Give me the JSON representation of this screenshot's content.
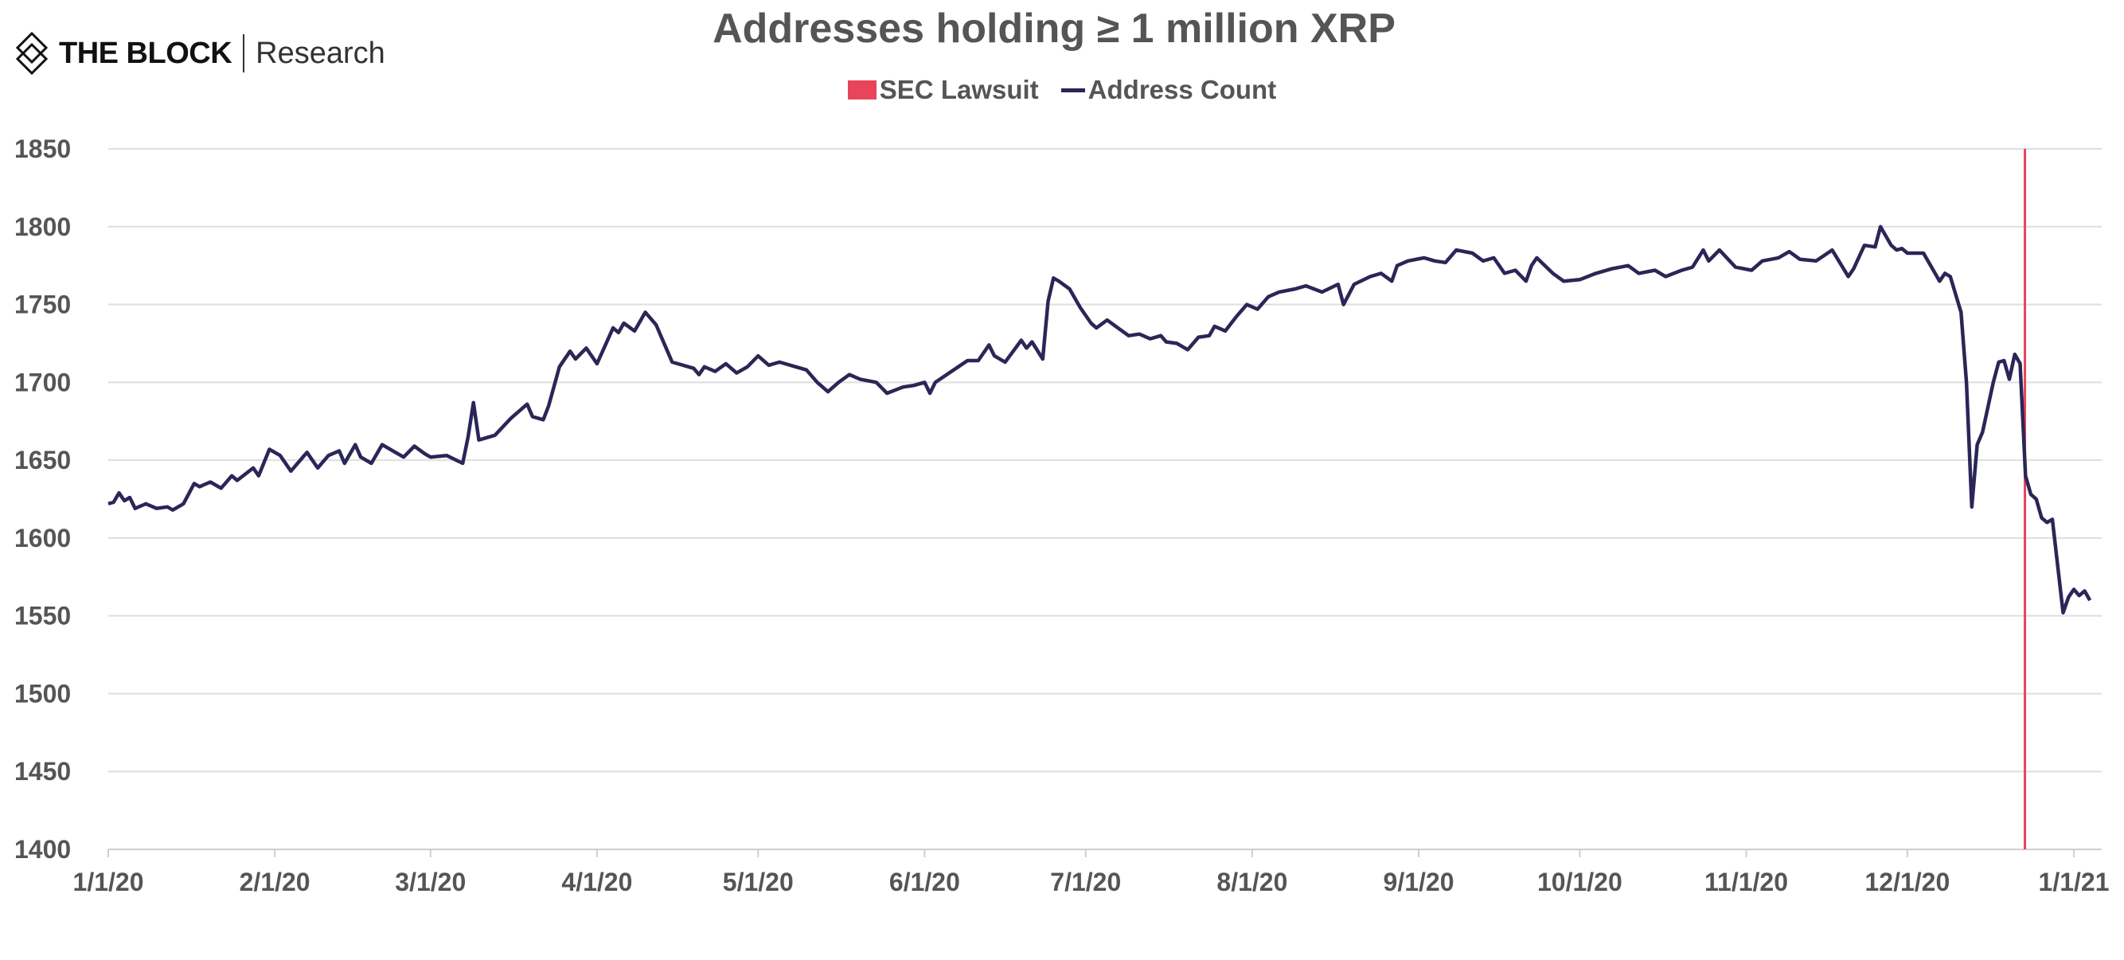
{
  "brand": {
    "name": "THE BLOCK",
    "sub": "Research"
  },
  "chart_data": {
    "type": "line",
    "title": "Addresses holding ≥ 1 million XRP",
    "legend": [
      {
        "name": "SEC Lawsuit",
        "color": "#e8445a"
      },
      {
        "name": "Address Count",
        "color": "#2a2657"
      }
    ],
    "legend_placement": "top",
    "ylim": [
      1400,
      1850
    ],
    "yticks": [
      1400,
      1450,
      1500,
      1550,
      1600,
      1650,
      1700,
      1750,
      1800,
      1850
    ],
    "xlim": [
      "2020-01-01",
      "2021-01-06"
    ],
    "xticks": [
      {
        "date": "2020-01-01",
        "label": "1/1/20"
      },
      {
        "date": "2020-02-01",
        "label": "2/1/20"
      },
      {
        "date": "2020-03-01",
        "label": "3/1/20"
      },
      {
        "date": "2020-04-01",
        "label": "4/1/20"
      },
      {
        "date": "2020-05-01",
        "label": "5/1/20"
      },
      {
        "date": "2020-06-01",
        "label": "6/1/20"
      },
      {
        "date": "2020-07-01",
        "label": "7/1/20"
      },
      {
        "date": "2020-08-01",
        "label": "8/1/20"
      },
      {
        "date": "2020-09-01",
        "label": "9/1/20"
      },
      {
        "date": "2020-10-01",
        "label": "10/1/20"
      },
      {
        "date": "2020-11-01",
        "label": "11/1/20"
      },
      {
        "date": "2020-12-01",
        "label": "12/1/20"
      },
      {
        "date": "2021-01-01",
        "label": "1/1/21"
      }
    ],
    "grid": "horizontal",
    "sec_lawsuit_date": "2020-12-22",
    "series": [
      {
        "name": "Address Count",
        "points": [
          [
            "2020-01-01",
            1622
          ],
          [
            "2020-01-02",
            1623
          ],
          [
            "2020-01-03",
            1629
          ],
          [
            "2020-01-04",
            1624
          ],
          [
            "2020-01-05",
            1626
          ],
          [
            "2020-01-06",
            1619
          ],
          [
            "2020-01-08",
            1622
          ],
          [
            "2020-01-10",
            1619
          ],
          [
            "2020-01-12",
            1620
          ],
          [
            "2020-01-13",
            1618
          ],
          [
            "2020-01-15",
            1622
          ],
          [
            "2020-01-17",
            1635
          ],
          [
            "2020-01-18",
            1633
          ],
          [
            "2020-01-20",
            1636
          ],
          [
            "2020-01-22",
            1632
          ],
          [
            "2020-01-24",
            1640
          ],
          [
            "2020-01-25",
            1637
          ],
          [
            "2020-01-28",
            1645
          ],
          [
            "2020-01-29",
            1640
          ],
          [
            "2020-01-31",
            1657
          ],
          [
            "2020-02-02",
            1653
          ],
          [
            "2020-02-04",
            1643
          ],
          [
            "2020-02-07",
            1655
          ],
          [
            "2020-02-09",
            1645
          ],
          [
            "2020-02-11",
            1653
          ],
          [
            "2020-02-13",
            1656
          ],
          [
            "2020-02-14",
            1648
          ],
          [
            "2020-02-16",
            1660
          ],
          [
            "2020-02-17",
            1652
          ],
          [
            "2020-02-19",
            1648
          ],
          [
            "2020-02-21",
            1660
          ],
          [
            "2020-02-23",
            1656
          ],
          [
            "2020-02-25",
            1652
          ],
          [
            "2020-02-27",
            1659
          ],
          [
            "2020-02-29",
            1654
          ],
          [
            "2020-03-01",
            1652
          ],
          [
            "2020-03-04",
            1653
          ],
          [
            "2020-03-07",
            1648
          ],
          [
            "2020-03-08",
            1665
          ],
          [
            "2020-03-09",
            1687
          ],
          [
            "2020-03-10",
            1663
          ],
          [
            "2020-03-13",
            1666
          ],
          [
            "2020-03-16",
            1677
          ],
          [
            "2020-03-19",
            1686
          ],
          [
            "2020-03-20",
            1678
          ],
          [
            "2020-03-22",
            1676
          ],
          [
            "2020-03-23",
            1685
          ],
          [
            "2020-03-25",
            1710
          ],
          [
            "2020-03-27",
            1720
          ],
          [
            "2020-03-28",
            1715
          ],
          [
            "2020-03-30",
            1722
          ],
          [
            "2020-04-01",
            1712
          ],
          [
            "2020-04-04",
            1735
          ],
          [
            "2020-04-05",
            1732
          ],
          [
            "2020-04-06",
            1738
          ],
          [
            "2020-04-08",
            1733
          ],
          [
            "2020-04-10",
            1745
          ],
          [
            "2020-04-12",
            1737
          ],
          [
            "2020-04-15",
            1713
          ],
          [
            "2020-04-19",
            1709
          ],
          [
            "2020-04-20",
            1705
          ],
          [
            "2020-04-21",
            1710
          ],
          [
            "2020-04-23",
            1707
          ],
          [
            "2020-04-25",
            1712
          ],
          [
            "2020-04-27",
            1706
          ],
          [
            "2020-04-29",
            1710
          ],
          [
            "2020-05-01",
            1717
          ],
          [
            "2020-05-03",
            1711
          ],
          [
            "2020-05-05",
            1713
          ],
          [
            "2020-05-08",
            1710
          ],
          [
            "2020-05-10",
            1708
          ],
          [
            "2020-05-12",
            1700
          ],
          [
            "2020-05-14",
            1694
          ],
          [
            "2020-05-16",
            1700
          ],
          [
            "2020-05-18",
            1705
          ],
          [
            "2020-05-20",
            1702
          ],
          [
            "2020-05-23",
            1700
          ],
          [
            "2020-05-25",
            1693
          ],
          [
            "2020-05-28",
            1697
          ],
          [
            "2020-05-30",
            1698
          ],
          [
            "2020-06-01",
            1700
          ],
          [
            "2020-06-02",
            1693
          ],
          [
            "2020-06-03",
            1700
          ],
          [
            "2020-06-06",
            1707
          ],
          [
            "2020-06-09",
            1714
          ],
          [
            "2020-06-11",
            1714
          ],
          [
            "2020-06-13",
            1724
          ],
          [
            "2020-06-14",
            1717
          ],
          [
            "2020-06-16",
            1713
          ],
          [
            "2020-06-19",
            1727
          ],
          [
            "2020-06-20",
            1722
          ],
          [
            "2020-06-21",
            1726
          ],
          [
            "2020-06-23",
            1715
          ],
          [
            "2020-06-24",
            1752
          ],
          [
            "2020-06-25",
            1767
          ],
          [
            "2020-06-26",
            1765
          ],
          [
            "2020-06-28",
            1760
          ],
          [
            "2020-06-30",
            1748
          ],
          [
            "2020-07-02",
            1738
          ],
          [
            "2020-07-03",
            1735
          ],
          [
            "2020-07-05",
            1740
          ],
          [
            "2020-07-07",
            1735
          ],
          [
            "2020-07-09",
            1730
          ],
          [
            "2020-07-11",
            1731
          ],
          [
            "2020-07-13",
            1728
          ],
          [
            "2020-07-15",
            1730
          ],
          [
            "2020-07-16",
            1726
          ],
          [
            "2020-07-18",
            1725
          ],
          [
            "2020-07-20",
            1721
          ],
          [
            "2020-07-22",
            1729
          ],
          [
            "2020-07-24",
            1730
          ],
          [
            "2020-07-25",
            1736
          ],
          [
            "2020-07-27",
            1733
          ],
          [
            "2020-07-29",
            1742
          ],
          [
            "2020-07-31",
            1750
          ],
          [
            "2020-08-02",
            1747
          ],
          [
            "2020-08-04",
            1755
          ],
          [
            "2020-08-06",
            1758
          ],
          [
            "2020-08-09",
            1760
          ],
          [
            "2020-08-11",
            1762
          ],
          [
            "2020-08-14",
            1758
          ],
          [
            "2020-08-17",
            1763
          ],
          [
            "2020-08-18",
            1750
          ],
          [
            "2020-08-20",
            1763
          ],
          [
            "2020-08-23",
            1768
          ],
          [
            "2020-08-25",
            1770
          ],
          [
            "2020-08-27",
            1765
          ],
          [
            "2020-08-28",
            1775
          ],
          [
            "2020-08-30",
            1778
          ],
          [
            "2020-09-02",
            1780
          ],
          [
            "2020-09-04",
            1778
          ],
          [
            "2020-09-06",
            1777
          ],
          [
            "2020-09-08",
            1785
          ],
          [
            "2020-09-11",
            1783
          ],
          [
            "2020-09-13",
            1778
          ],
          [
            "2020-09-15",
            1780
          ],
          [
            "2020-09-17",
            1770
          ],
          [
            "2020-09-19",
            1772
          ],
          [
            "2020-09-21",
            1765
          ],
          [
            "2020-09-22",
            1775
          ],
          [
            "2020-09-23",
            1780
          ],
          [
            "2020-09-26",
            1770
          ],
          [
            "2020-09-28",
            1765
          ],
          [
            "2020-10-01",
            1766
          ],
          [
            "2020-10-04",
            1770
          ],
          [
            "2020-10-07",
            1773
          ],
          [
            "2020-10-10",
            1775
          ],
          [
            "2020-10-12",
            1770
          ],
          [
            "2020-10-15",
            1772
          ],
          [
            "2020-10-17",
            1768
          ],
          [
            "2020-10-20",
            1772
          ],
          [
            "2020-10-22",
            1774
          ],
          [
            "2020-10-24",
            1785
          ],
          [
            "2020-10-25",
            1778
          ],
          [
            "2020-10-27",
            1785
          ],
          [
            "2020-10-30",
            1774
          ],
          [
            "2020-11-02",
            1772
          ],
          [
            "2020-11-04",
            1778
          ],
          [
            "2020-11-07",
            1780
          ],
          [
            "2020-11-09",
            1784
          ],
          [
            "2020-11-11",
            1779
          ],
          [
            "2020-11-14",
            1778
          ],
          [
            "2020-11-17",
            1785
          ],
          [
            "2020-11-20",
            1768
          ],
          [
            "2020-11-21",
            1773
          ],
          [
            "2020-11-23",
            1788
          ],
          [
            "2020-11-25",
            1787
          ],
          [
            "2020-11-26",
            1800
          ],
          [
            "2020-11-28",
            1788
          ],
          [
            "2020-11-29",
            1785
          ],
          [
            "2020-11-30",
            1786
          ],
          [
            "2020-12-01",
            1783
          ],
          [
            "2020-12-04",
            1783
          ],
          [
            "2020-12-07",
            1765
          ],
          [
            "2020-12-08",
            1770
          ],
          [
            "2020-12-09",
            1768
          ],
          [
            "2020-12-11",
            1745
          ],
          [
            "2020-12-12",
            1700
          ],
          [
            "2020-12-13",
            1620
          ],
          [
            "2020-12-14",
            1660
          ],
          [
            "2020-12-15",
            1668
          ],
          [
            "2020-12-17",
            1700
          ],
          [
            "2020-12-18",
            1713
          ],
          [
            "2020-12-19",
            1714
          ],
          [
            "2020-12-20",
            1702
          ],
          [
            "2020-12-21",
            1718
          ],
          [
            "2020-12-22",
            1712
          ],
          [
            "2020-12-23",
            1640
          ],
          [
            "2020-12-24",
            1628
          ],
          [
            "2020-12-25",
            1625
          ],
          [
            "2020-12-26",
            1613
          ],
          [
            "2020-12-27",
            1610
          ],
          [
            "2020-12-28",
            1612
          ],
          [
            "2020-12-30",
            1552
          ],
          [
            "2020-12-31",
            1562
          ],
          [
            "2021-01-01",
            1567
          ],
          [
            "2021-01-02",
            1563
          ],
          [
            "2021-01-03",
            1566
          ],
          [
            "2021-01-04",
            1560
          ]
        ]
      }
    ]
  }
}
